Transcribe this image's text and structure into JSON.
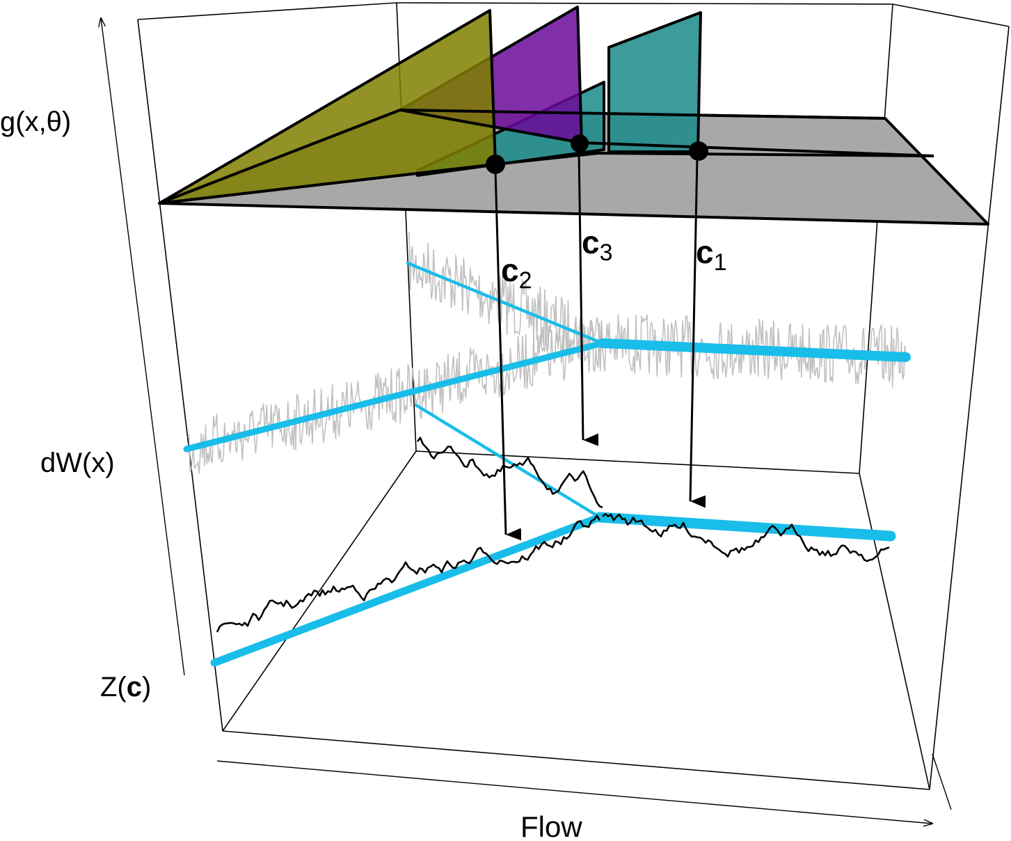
{
  "labels": {
    "g_axis": "g(x,θ)",
    "dw_axis": "dW(x)",
    "z_axis_prefix": "Z(",
    "z_axis_bold": "c",
    "z_axis_suffix": ")",
    "flow_axis": "Flow"
  },
  "points": [
    {
      "letter": "c",
      "subscript": "2"
    },
    {
      "letter": "c",
      "subscript": "3"
    },
    {
      "letter": "c",
      "subscript": "1"
    }
  ],
  "colors": {
    "olive": "#7f7f00",
    "purple": "#6a0a9a",
    "teal": "#1a8a8a",
    "gray_plane": "#a8a8a8",
    "cyan": "#19bde9",
    "noise_gray": "#bdbdbd",
    "black": "#000000"
  }
}
